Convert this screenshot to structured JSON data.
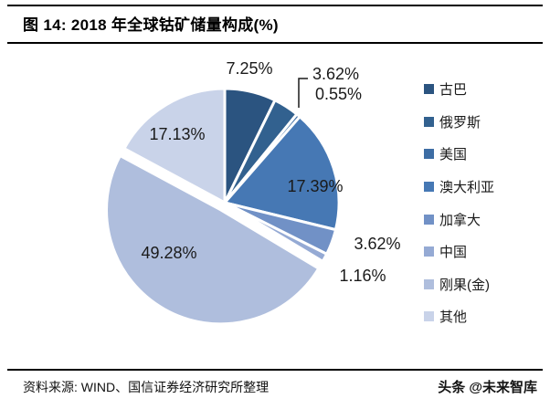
{
  "header": {
    "title": "图 14:  2018 年全球钴矿储量构成(%)"
  },
  "chart_data": {
    "type": "pie",
    "title": "2018 年全球钴矿储量构成(%)",
    "unit": "%",
    "start_angle_deg": 0,
    "direction": "clockwise",
    "legend_position": "right",
    "slices": [
      {
        "name": "古巴",
        "value": 7.25,
        "label": "7.25%",
        "color": "#2B5480"
      },
      {
        "name": "俄罗斯",
        "value": 3.62,
        "label": "3.62%",
        "color": "#32618F"
      },
      {
        "name": "美国",
        "value": 0.55,
        "label": "0.55%",
        "color": "#3D6DA4"
      },
      {
        "name": "澳大利亚",
        "value": 17.39,
        "label": "17.39%",
        "color": "#4678B4"
      },
      {
        "name": "加拿大",
        "value": 3.62,
        "label": "3.62%",
        "color": "#7191C6"
      },
      {
        "name": "中国",
        "value": 1.16,
        "label": "1.16%",
        "color": "#95AAD4"
      },
      {
        "name": "刚果(金)",
        "value": 49.28,
        "label": "49.28%",
        "color": "#AFBEDD",
        "exploded": true
      },
      {
        "name": "其他",
        "value": 17.13,
        "label": "17.13%",
        "color": "#C9D3E9"
      }
    ]
  },
  "footer": {
    "source": "资料来源: WIND、国信证券经济研究所整理",
    "watermark": "头条 @未来智库"
  }
}
